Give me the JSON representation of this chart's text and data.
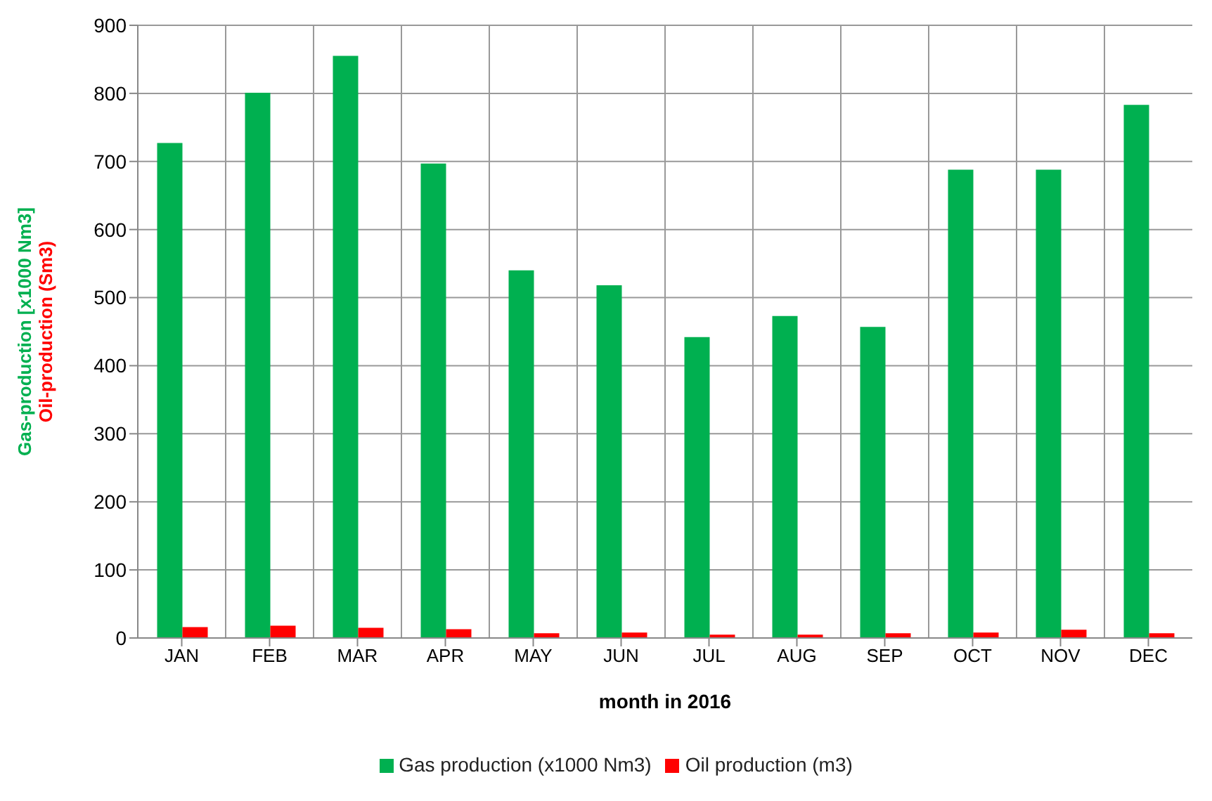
{
  "chart_data": {
    "type": "bar",
    "categories": [
      "JAN",
      "FEB",
      "MAR",
      "APR",
      "MAY",
      "JUN",
      "JUL",
      "AUG",
      "SEP",
      "OCT",
      "NOV",
      "DEC"
    ],
    "series": [
      {
        "name": "Gas production (x1000 Nm3)",
        "color": "#00b050",
        "values": [
          727,
          801,
          855,
          697,
          540,
          518,
          442,
          473,
          457,
          688,
          688,
          783
        ]
      },
      {
        "name": "Oil production (m3)",
        "color": "#ff0000",
        "values": [
          16,
          18,
          15,
          13,
          7,
          8,
          5,
          5,
          7,
          8,
          12,
          7
        ]
      }
    ],
    "xlabel": "month in 2016",
    "ylabel": "Gas-production  [x1000 Nm3]\nOil-production  (Sm3)",
    "ylim": [
      0,
      900
    ],
    "yticks": [
      0,
      100,
      200,
      300,
      400,
      500,
      600,
      700,
      800,
      900
    ],
    "grid": true,
    "legend": "bottom"
  }
}
